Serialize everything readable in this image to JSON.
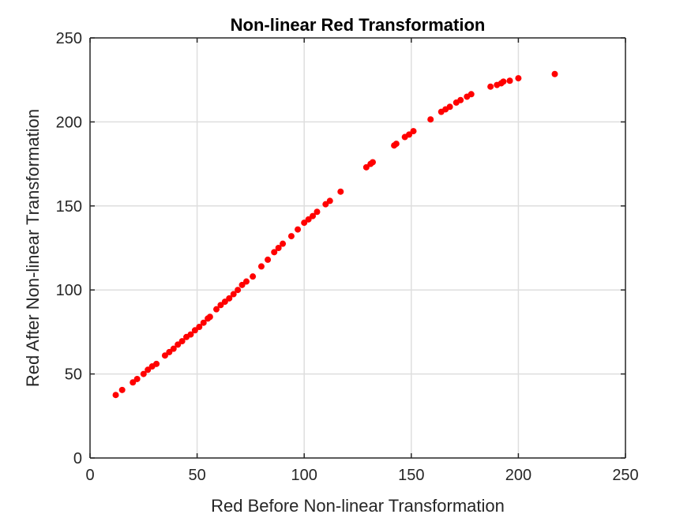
{
  "chart_data": {
    "type": "scatter",
    "title": "Non-linear Red Transformation",
    "xlabel": "Red Before Non-linear Transformation",
    "ylabel": "Red After Non-linear Transformation",
    "xlim": [
      0,
      250
    ],
    "ylim": [
      0,
      250
    ],
    "xticks": [
      0,
      50,
      100,
      150,
      200,
      250
    ],
    "yticks": [
      0,
      50,
      100,
      150,
      200,
      250
    ],
    "grid": true,
    "marker_color": "#ff0000",
    "points": [
      [
        12,
        37.5
      ],
      [
        15,
        40.5
      ],
      [
        20,
        45
      ],
      [
        22,
        47
      ],
      [
        25,
        50
      ],
      [
        27,
        52.5
      ],
      [
        29,
        54.5
      ],
      [
        31,
        56
      ],
      [
        35,
        61
      ],
      [
        37,
        63
      ],
      [
        39,
        65
      ],
      [
        41,
        67.5
      ],
      [
        43,
        69.5
      ],
      [
        45,
        72
      ],
      [
        47,
        73.5
      ],
      [
        49,
        76
      ],
      [
        51,
        78
      ],
      [
        53,
        80.5
      ],
      [
        55,
        83
      ],
      [
        56,
        84
      ],
      [
        59,
        88.5
      ],
      [
        61,
        91
      ],
      [
        63,
        93
      ],
      [
        65,
        95
      ],
      [
        67,
        97.5
      ],
      [
        69,
        100
      ],
      [
        71,
        103
      ],
      [
        73,
        105
      ],
      [
        76,
        108
      ],
      [
        80,
        114
      ],
      [
        83,
        118
      ],
      [
        86,
        122.5
      ],
      [
        88,
        125
      ],
      [
        90,
        127.5
      ],
      [
        94,
        132
      ],
      [
        97,
        136
      ],
      [
        100,
        140
      ],
      [
        102,
        142
      ],
      [
        104,
        144
      ],
      [
        106,
        146.5
      ],
      [
        110,
        151
      ],
      [
        112,
        153
      ],
      [
        117,
        158.5
      ],
      [
        129,
        173
      ],
      [
        131,
        175
      ],
      [
        132,
        176
      ],
      [
        142,
        186
      ],
      [
        143,
        187
      ],
      [
        147,
        191
      ],
      [
        149,
        192.5
      ],
      [
        151,
        194.5
      ],
      [
        159,
        201.5
      ],
      [
        164,
        206
      ],
      [
        166,
        207.5
      ],
      [
        168,
        209
      ],
      [
        171,
        211.5
      ],
      [
        173,
        213
      ],
      [
        176,
        215
      ],
      [
        178,
        216.5
      ],
      [
        187,
        221
      ],
      [
        190,
        222
      ],
      [
        192,
        223
      ],
      [
        193,
        224
      ],
      [
        196,
        224.5
      ],
      [
        200,
        226
      ],
      [
        217,
        228.5
      ]
    ]
  }
}
